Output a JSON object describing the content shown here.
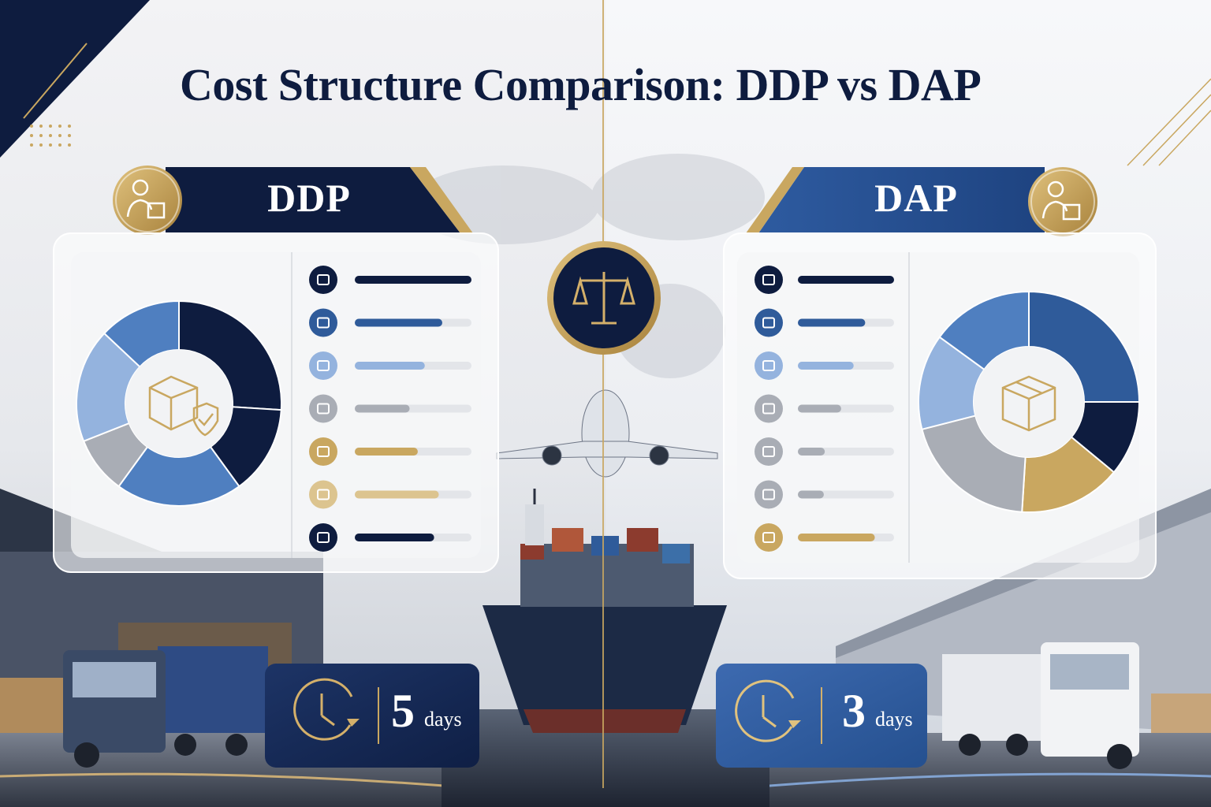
{
  "title": "Cost Structure Comparison: DDP vs DAP",
  "colors": {
    "navy": "#0e1c3f",
    "blue": "#2f5b9a",
    "mid_blue": "#4f7fc0",
    "light_blue": "#94b3de",
    "grey": "#a9adb5",
    "gold": "#c9a760",
    "light_gold": "#dcc48f"
  },
  "center_icon": "scales-icon",
  "cost_items": [
    {
      "icon": "factory-icon"
    },
    {
      "icon": "ship-icon"
    },
    {
      "icon": "plane-icon"
    },
    {
      "icon": "train-icon"
    },
    {
      "icon": "customs-officer-icon"
    },
    {
      "icon": "document-icon"
    },
    {
      "icon": "delivery-truck-icon"
    }
  ],
  "panels": {
    "ddp": {
      "label": "DDP",
      "badge_icon": "person-with-box-icon",
      "center_icon": "shield-box-icon",
      "transit_value": "5",
      "transit_unit": "days",
      "clock_icon": "clock-icon"
    },
    "dap": {
      "label": "DAP",
      "badge_icon": "person-with-box-icon",
      "center_icon": "box-icon",
      "transit_value": "3",
      "transit_unit": "days",
      "clock_icon": "clock-icon"
    }
  },
  "chart_data": [
    {
      "type": "pie",
      "name": "DDP",
      "values": [
        26,
        14,
        20,
        9,
        18,
        13
      ],
      "colors": [
        "#0e1c3f",
        "#0e1c3f",
        "#4f7fc0",
        "#a9adb5",
        "#94b3de",
        "#4f7fc0"
      ],
      "bar_values": [
        1.0,
        0.75,
        0.6,
        0.47,
        0.54,
        0.72,
        0.68
      ],
      "bar_colors": [
        "#0e1c3f",
        "#2f5b9a",
        "#94b3de",
        "#a9adb5",
        "#c9a760",
        "#dcc48f",
        "#0e1c3f"
      ]
    },
    {
      "type": "pie",
      "name": "DAP",
      "values": [
        25,
        11,
        15,
        20,
        14,
        15
      ],
      "colors": [
        "#2f5b9a",
        "#0e1c3f",
        "#c9a760",
        "#a9adb5",
        "#94b3de",
        "#4f7fc0"
      ],
      "bar_values": [
        1.0,
        0.7,
        0.58,
        0.45,
        0.28,
        0.27,
        0.8
      ],
      "bar_colors": [
        "#0e1c3f",
        "#2f5b9a",
        "#94b3de",
        "#a9adb5",
        "#a9adb5",
        "#a9adb5",
        "#c9a760"
      ]
    }
  ]
}
